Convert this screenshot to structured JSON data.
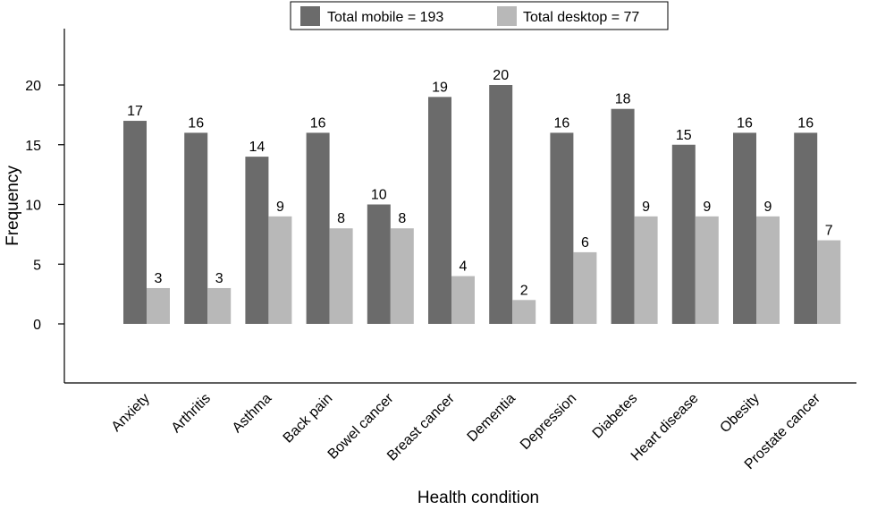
{
  "chart_data": {
    "type": "bar",
    "categories": [
      "Anxiety",
      "Arthritis",
      "Asthma",
      "Back pain",
      "Bowel cancer",
      "Breast cancer",
      "Dementia",
      "Depression",
      "Diabetes",
      "Heart disease",
      "Obesity",
      "Prostate cancer"
    ],
    "series": [
      {
        "name": "Total mobile = 193",
        "color": "#6b6b6b",
        "values": [
          17,
          16,
          14,
          16,
          10,
          19,
          20,
          16,
          18,
          15,
          16,
          16
        ]
      },
      {
        "name": "Total desktop = 77",
        "color": "#b8b8b8",
        "values": [
          3,
          3,
          9,
          8,
          8,
          4,
          2,
          6,
          9,
          9,
          9,
          7
        ]
      }
    ],
    "xlabel": "Health condition",
    "ylabel": "Frequency",
    "ylim": [
      -5,
      25
    ],
    "yticks": [
      0,
      5,
      10,
      15,
      20
    ],
    "legend_position": "top-center",
    "grid": false
  }
}
